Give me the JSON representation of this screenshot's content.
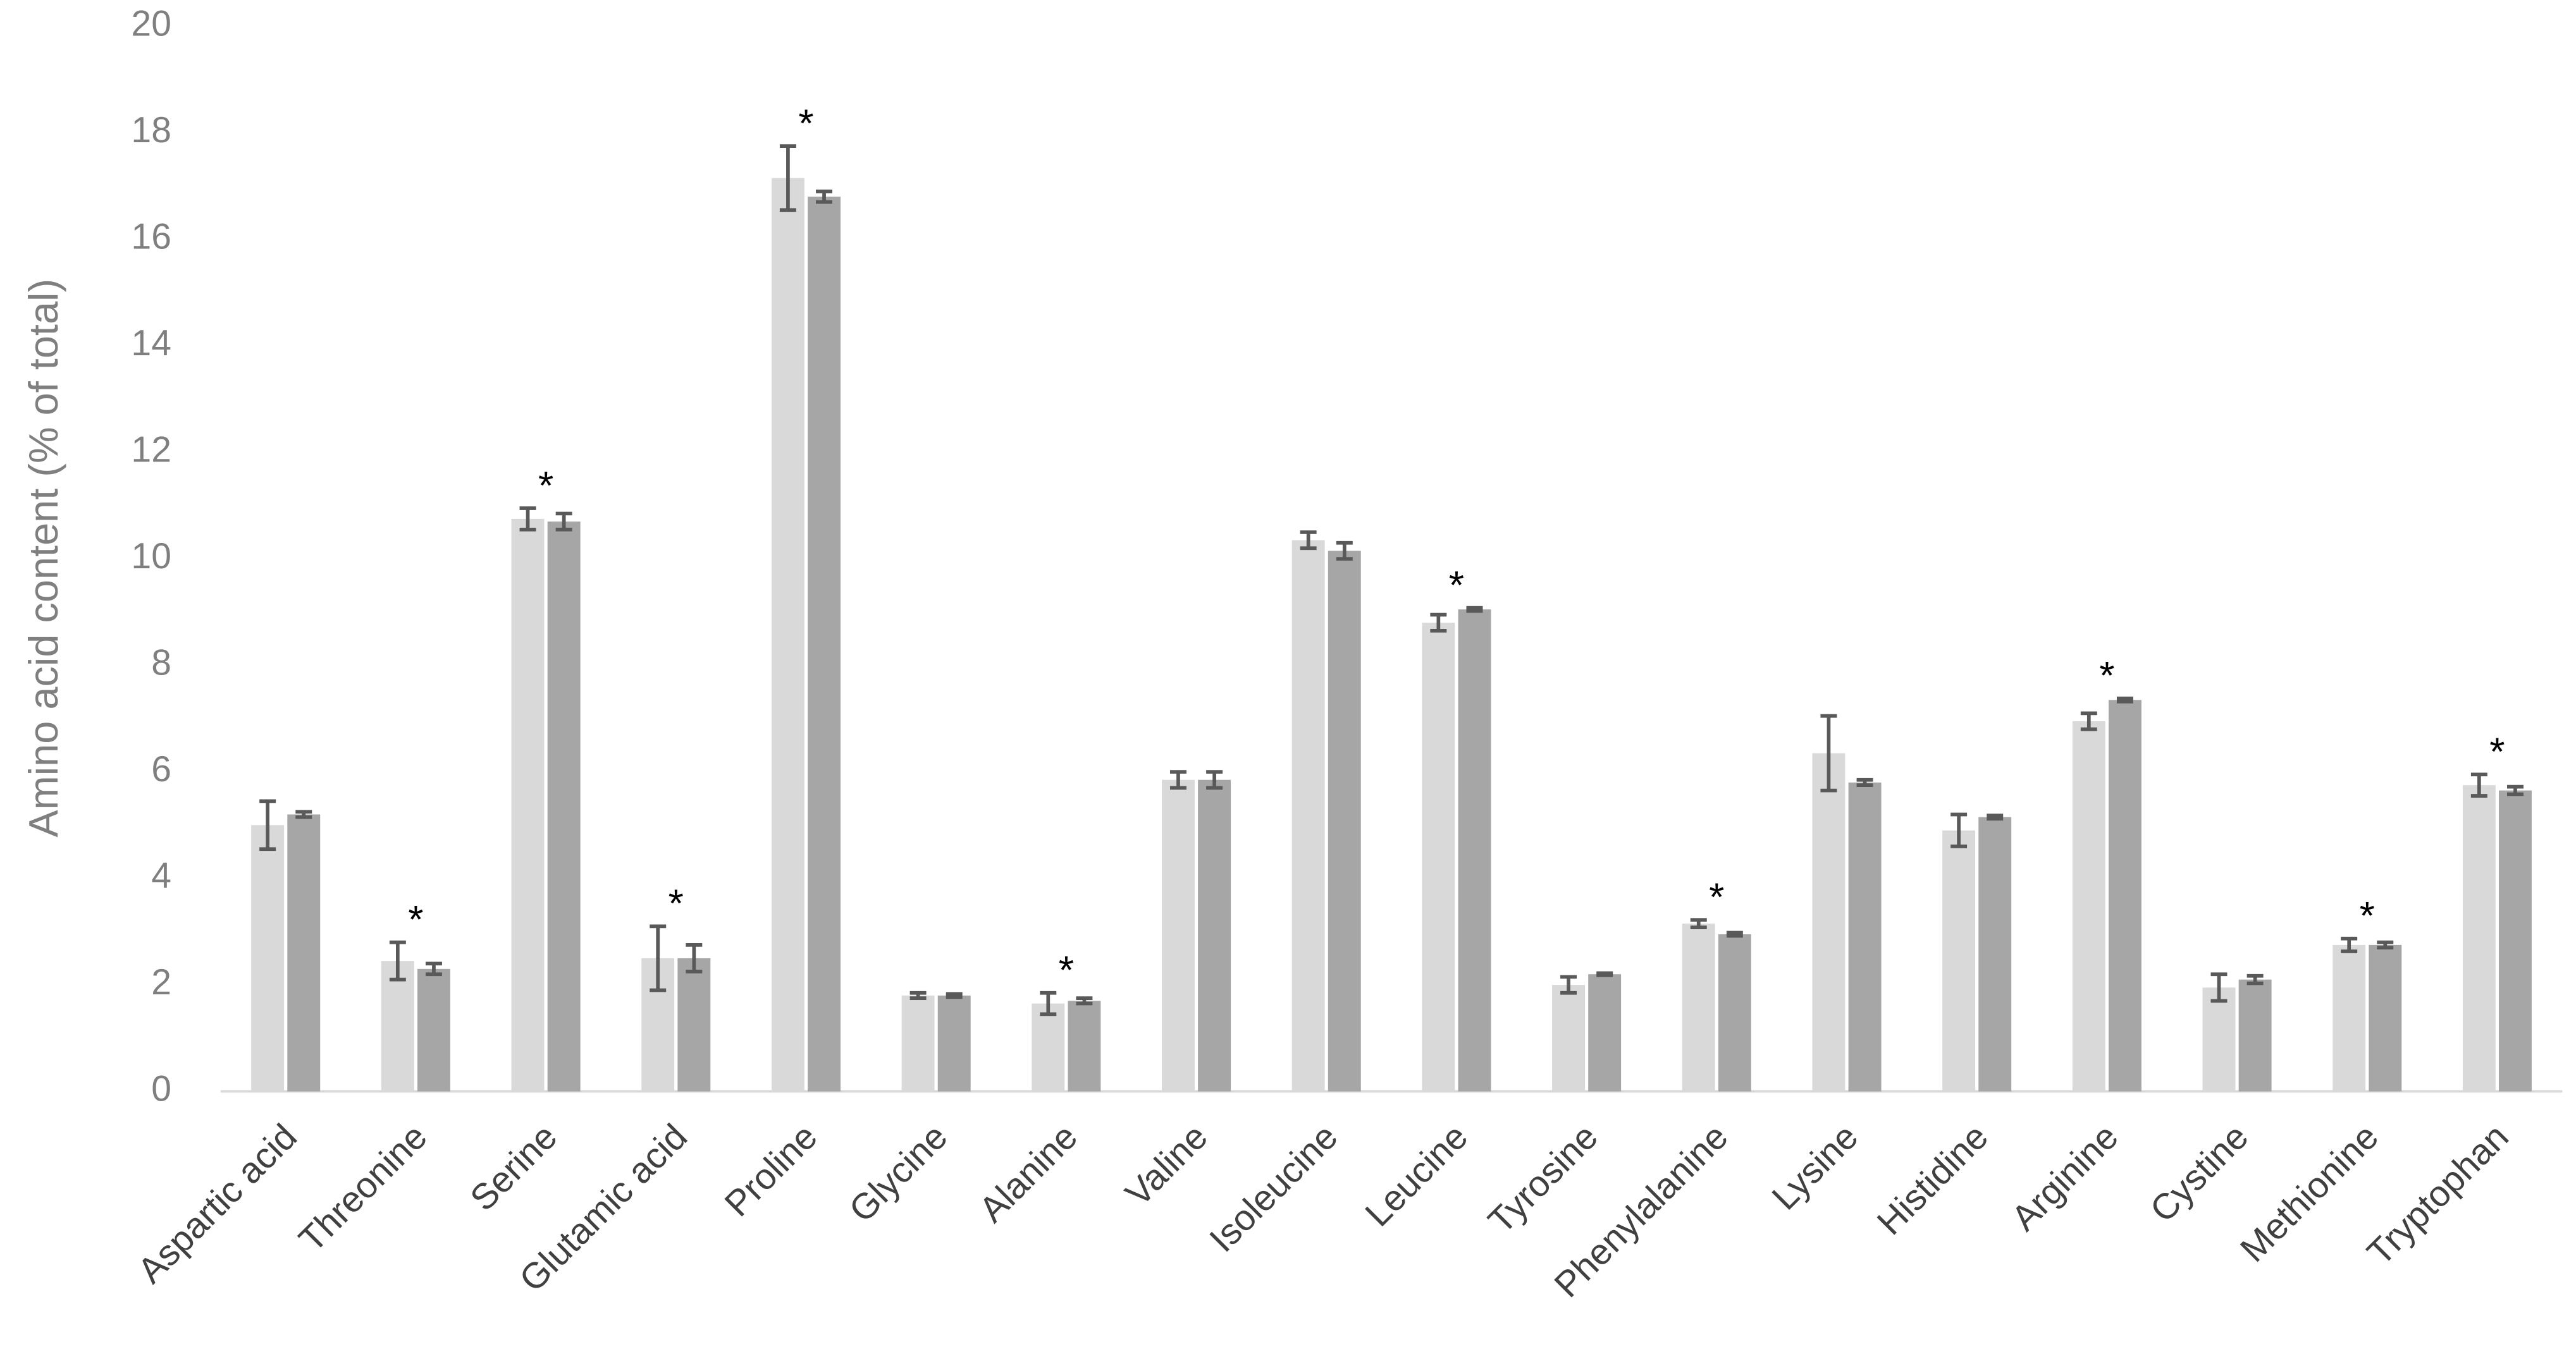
{
  "chart_data": {
    "type": "bar",
    "y_label": "Amino acid content (% of total)",
    "categories": [
      "Aspartic acid",
      "Threonine",
      "Serine",
      "Glutamic acid",
      "Proline",
      "Glycine",
      "Alanine",
      "Valine",
      "Isoleucine",
      "Leucine",
      "Tyrosine",
      "Phenylalanine",
      "Lysine",
      "Histidine",
      "Arginine",
      "Cystine",
      "Methionine",
      "Tryptophan"
    ],
    "series": [
      {
        "color": "#d9d9d9",
        "values": [
          5.0,
          2.45,
          10.75,
          2.5,
          17.15,
          1.8,
          1.65,
          5.85,
          10.35,
          8.8,
          2.0,
          3.15,
          6.35,
          4.9,
          6.95,
          1.95,
          2.75,
          5.75
        ],
        "errors": [
          0.45,
          0.35,
          0.2,
          0.6,
          0.6,
          0.05,
          0.2,
          0.15,
          0.15,
          0.15,
          0.15,
          0.07,
          0.7,
          0.3,
          0.15,
          0.25,
          0.12,
          0.2
        ]
      },
      {
        "color": "#a6a6a6",
        "values": [
          5.2,
          2.3,
          10.7,
          2.5,
          16.8,
          1.8,
          1.7,
          5.85,
          10.15,
          9.05,
          2.2,
          2.95,
          5.8,
          5.15,
          7.35,
          2.1,
          2.75,
          5.65
        ],
        "errors": [
          0.05,
          0.1,
          0.15,
          0.25,
          0.1,
          0.03,
          0.05,
          0.15,
          0.15,
          0.03,
          0.02,
          0.03,
          0.05,
          0.03,
          0.03,
          0.07,
          0.05,
          0.07
        ]
      }
    ],
    "significance": [
      null,
      "*",
      "*",
      "*",
      "*",
      null,
      "*",
      null,
      null,
      "*",
      null,
      "*",
      null,
      null,
      "*",
      null,
      "*",
      "*"
    ],
    "ylim": [
      0,
      20
    ],
    "yticks": [
      0,
      2,
      4,
      6,
      8,
      10,
      12,
      14,
      16,
      18,
      20
    ],
    "grid": false
  }
}
